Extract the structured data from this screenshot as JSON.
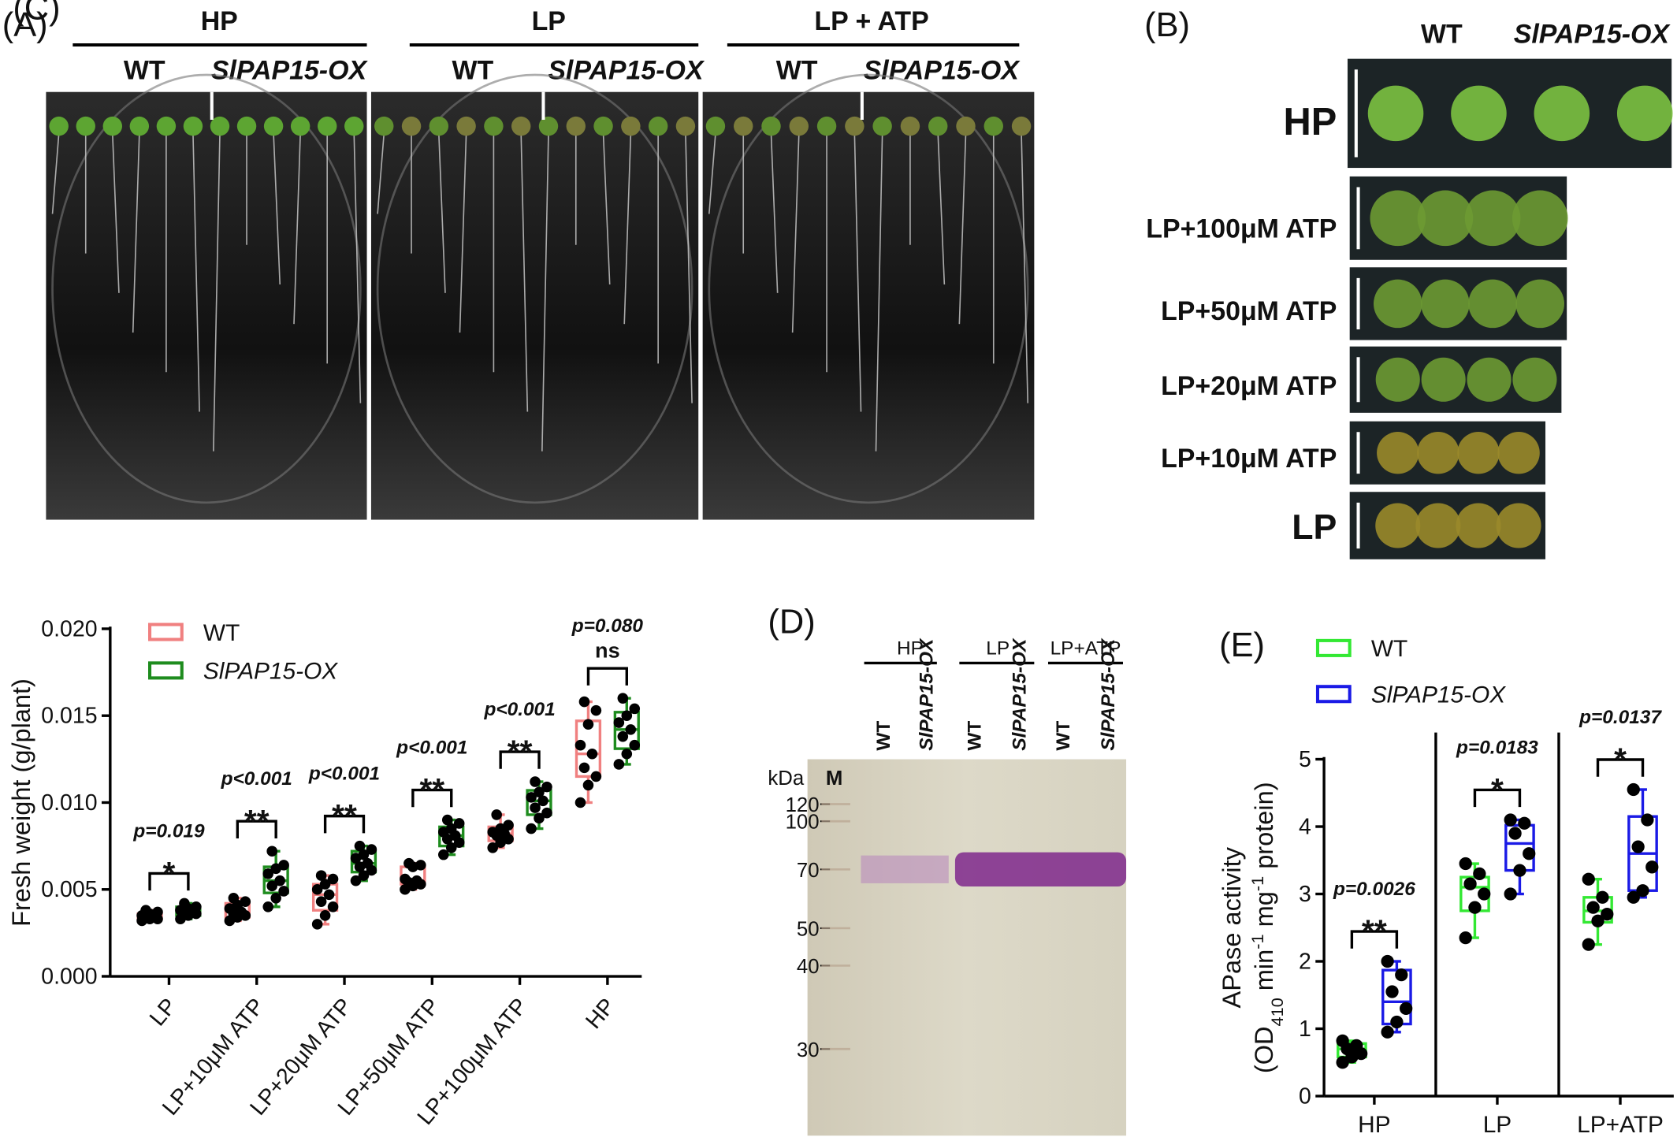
{
  "panels": {
    "A": {
      "label": "(A)",
      "groups": [
        {
          "title": "HP",
          "lanes": [
            "WT",
            "SlPAP15-OX"
          ]
        },
        {
          "title": "LP",
          "lanes": [
            "WT",
            "SlPAP15-OX"
          ]
        },
        {
          "title": "LP + ATP",
          "lanes": [
            "WT",
            "SlPAP15-OX"
          ]
        }
      ]
    },
    "B": {
      "label": "(B)",
      "columns": [
        "WT",
        "SlPAP15-OX"
      ],
      "rows": [
        "HP",
        "LP+100μM ATP",
        "LP+50μM ATP",
        "LP+20μM ATP",
        "LP+10μM ATP",
        "LP"
      ]
    },
    "D": {
      "label": "(D)",
      "unit": "kDa",
      "marker_lane": "M",
      "markers": [
        120,
        100,
        70,
        50,
        40,
        30
      ],
      "groups": [
        {
          "title": "HP",
          "lanes": [
            "WT",
            "SlPAP15-OX"
          ]
        },
        {
          "title": "LP",
          "lanes": [
            "WT",
            "SlPAP15-OX"
          ]
        },
        {
          "title": "LP+ATP",
          "lanes": [
            "WT",
            "SlPAP15-OX"
          ]
        }
      ]
    }
  },
  "chart_data": [
    {
      "type": "box",
      "panel_label": "(C)",
      "ylabel": "Fresh weight (g/plant)",
      "legend": "upper-left",
      "categories": [
        "LP",
        "LP+10μM ATP",
        "LP+20μM ATP",
        "LP+50μM ATP",
        "LP+100μM ATP",
        "HP"
      ],
      "ylim": [
        0,
        0.02
      ],
      "yticks": [
        {
          "value": 0,
          "label": "0.000"
        },
        {
          "value": 0.005,
          "label": "0.005"
        },
        {
          "value": 0.01,
          "label": "0.010"
        },
        {
          "value": 0.015,
          "label": "0.015"
        },
        {
          "value": 0.02,
          "label": "0.020"
        }
      ],
      "series": [
        {
          "name": "WT",
          "color": "#f08080",
          "boxes": [
            {
              "min": 0.0032,
              "q1": 0.0033,
              "median": 0.0034,
              "q3": 0.0036,
              "max": 0.0038,
              "points": [
                0.0032,
                0.0033,
                0.0033,
                0.0034,
                0.0034,
                0.0035,
                0.0036,
                0.0037,
                0.0038
              ]
            },
            {
              "min": 0.0032,
              "q1": 0.0034,
              "median": 0.0037,
              "q3": 0.0042,
              "max": 0.0045,
              "points": [
                0.0032,
                0.0034,
                0.0035,
                0.0036,
                0.0037,
                0.0039,
                0.0041,
                0.0043,
                0.0045
              ]
            },
            {
              "min": 0.003,
              "q1": 0.0038,
              "median": 0.0047,
              "q3": 0.0053,
              "max": 0.0058,
              "points": [
                0.003,
                0.0035,
                0.004,
                0.0043,
                0.0047,
                0.005,
                0.0053,
                0.0056,
                0.0058
              ]
            },
            {
              "min": 0.005,
              "q1": 0.0053,
              "median": 0.0055,
              "q3": 0.0063,
              "max": 0.0065,
              "points": [
                0.005,
                0.0052,
                0.0053,
                0.0054,
                0.0055,
                0.0056,
                0.0063,
                0.0064,
                0.0065
              ]
            },
            {
              "min": 0.0074,
              "q1": 0.0078,
              "median": 0.0082,
              "q3": 0.0086,
              "max": 0.0093,
              "points": [
                0.0074,
                0.0077,
                0.0079,
                0.0081,
                0.0082,
                0.0083,
                0.0085,
                0.0087,
                0.0093
              ]
            },
            {
              "min": 0.01,
              "q1": 0.0115,
              "median": 0.0128,
              "q3": 0.0147,
              "max": 0.0158,
              "points": [
                0.01,
                0.011,
                0.0115,
                0.012,
                0.0128,
                0.0133,
                0.0145,
                0.0153,
                0.0158
              ]
            }
          ]
        },
        {
          "name": "SlPAP15-OX",
          "color": "#1e8c1e",
          "boxes": [
            {
              "min": 0.0033,
              "q1": 0.0035,
              "median": 0.0037,
              "q3": 0.004,
              "max": 0.0042,
              "points": [
                0.0033,
                0.0035,
                0.0036,
                0.0037,
                0.0037,
                0.0038,
                0.0039,
                0.004,
                0.0042
              ]
            },
            {
              "min": 0.004,
              "q1": 0.0048,
              "median": 0.0055,
              "q3": 0.0063,
              "max": 0.0072,
              "points": [
                0.004,
                0.0045,
                0.0049,
                0.0052,
                0.0055,
                0.0059,
                0.0062,
                0.0064,
                0.0072
              ]
            },
            {
              "min": 0.0055,
              "q1": 0.006,
              "median": 0.0065,
              "q3": 0.0072,
              "max": 0.0075,
              "points": [
                0.0055,
                0.0058,
                0.0061,
                0.0063,
                0.0065,
                0.0068,
                0.007,
                0.0073,
                0.0075
              ]
            },
            {
              "min": 0.007,
              "q1": 0.0075,
              "median": 0.0081,
              "q3": 0.0086,
              "max": 0.009,
              "points": [
                0.007,
                0.0074,
                0.0077,
                0.0079,
                0.0081,
                0.0083,
                0.0085,
                0.0088,
                0.009
              ]
            },
            {
              "min": 0.0085,
              "q1": 0.0093,
              "median": 0.0101,
              "q3": 0.0107,
              "max": 0.0112,
              "points": [
                0.0085,
                0.0091,
                0.0094,
                0.0097,
                0.0101,
                0.0103,
                0.0106,
                0.0109,
                0.0112
              ]
            },
            {
              "min": 0.0122,
              "q1": 0.0131,
              "median": 0.0142,
              "q3": 0.0152,
              "max": 0.016,
              "points": [
                0.0122,
                0.0128,
                0.0133,
                0.0138,
                0.0142,
                0.0146,
                0.015,
                0.0154,
                0.016
              ]
            }
          ]
        }
      ],
      "annotations": [
        {
          "p": "p=0.019",
          "sig": "*"
        },
        {
          "p": "p<0.001",
          "sig": "**"
        },
        {
          "p": "p<0.001",
          "sig": "**"
        },
        {
          "p": "p<0.001",
          "sig": "**"
        },
        {
          "p": "p<0.001",
          "sig": "**"
        },
        {
          "p": "p=0.080",
          "sig": "ns"
        }
      ]
    },
    {
      "type": "box",
      "panel_label": "(E)",
      "ylabel": "APase activity",
      "ylabel_units": [
        "(OD",
        "410",
        " min",
        "-1",
        " mg",
        "-1",
        " protein)"
      ],
      "legend": "upper-left",
      "separators": true,
      "categories": [
        "HP",
        "LP",
        "LP+ATP"
      ],
      "ylim": [
        0,
        5
      ],
      "yticks": [
        0,
        1,
        2,
        3,
        4,
        5
      ],
      "series": [
        {
          "name": "WT",
          "color": "#33e833",
          "boxes": [
            {
              "min": 0.5,
              "q1": 0.58,
              "median": 0.7,
              "q3": 0.78,
              "max": 0.82,
              "points": [
                0.5,
                0.58,
                0.63,
                0.7,
                0.75,
                0.82
              ]
            },
            {
              "min": 2.35,
              "q1": 2.75,
              "median": 3.1,
              "q3": 3.25,
              "max": 3.45,
              "points": [
                2.35,
                2.8,
                3.0,
                3.15,
                3.3,
                3.45
              ]
            },
            {
              "min": 2.25,
              "q1": 2.58,
              "median": 2.75,
              "q3": 2.95,
              "max": 3.22,
              "points": [
                2.25,
                2.6,
                2.7,
                2.8,
                2.95,
                3.22
              ]
            }
          ]
        },
        {
          "name": "SlPAP15-OX",
          "color": "#1a1ae6",
          "boxes": [
            {
              "min": 0.95,
              "q1": 1.07,
              "median": 1.4,
              "q3": 1.87,
              "max": 2.0,
              "points": [
                0.95,
                1.1,
                1.3,
                1.55,
                1.8,
                2.0
              ]
            },
            {
              "min": 3.0,
              "q1": 3.35,
              "median": 3.75,
              "q3": 4.02,
              "max": 4.1,
              "points": [
                3.0,
                3.35,
                3.6,
                3.9,
                4.05,
                4.1
              ]
            },
            {
              "min": 2.95,
              "q1": 3.05,
              "median": 3.6,
              "q3": 4.15,
              "max": 4.55,
              "points": [
                2.95,
                3.05,
                3.4,
                3.7,
                4.1,
                4.55
              ]
            }
          ]
        }
      ],
      "annotations": [
        {
          "p": "p=0.0026",
          "sig": "**"
        },
        {
          "p": "p=0.0183",
          "sig": "*"
        },
        {
          "p": "p=0.0137",
          "sig": "*"
        }
      ]
    }
  ]
}
